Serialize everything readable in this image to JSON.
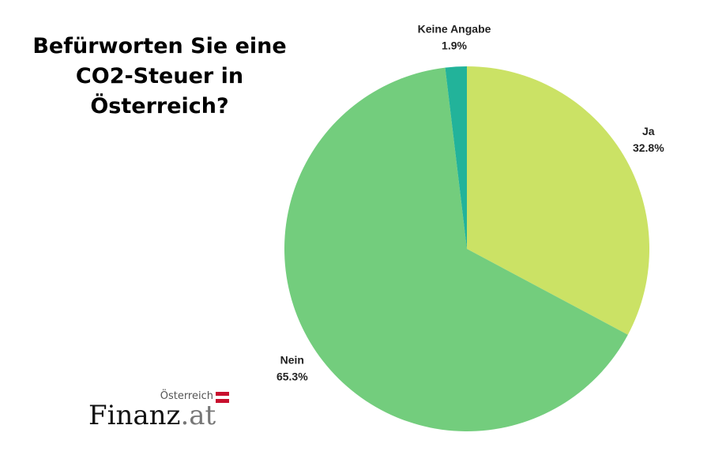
{
  "title": "Befürworten Sie eine CO2-Steuer in Österreich?",
  "logo": {
    "country": "Österreich",
    "brand_main": "Finanz",
    "brand_suffix": ".at",
    "flag_colors": [
      "#c8102e",
      "#ffffff",
      "#c8102e"
    ]
  },
  "chart_data": {
    "type": "pie",
    "title": "Befürworten Sie eine CO2-Steuer in Österreich?",
    "slices": [
      {
        "label": "Ja",
        "value": 32.8,
        "value_label": "32.8%",
        "color": "#cbe265"
      },
      {
        "label": "Nein",
        "value": 65.3,
        "value_label": "65.3%",
        "color": "#73cd7d"
      },
      {
        "label": "Keine Angabe",
        "value": 1.9,
        "value_label": "1.9%",
        "color": "#22b39a"
      }
    ],
    "start": "12 o'clock",
    "direction": "clockwise"
  }
}
